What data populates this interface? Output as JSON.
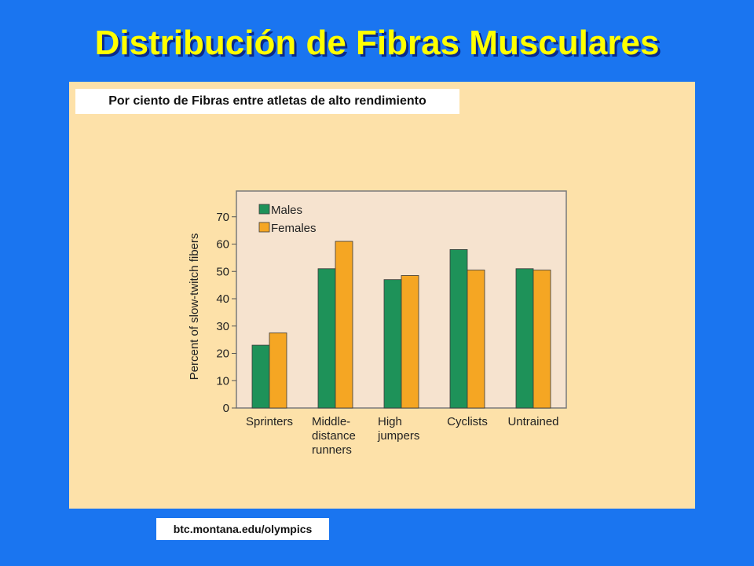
{
  "slide": {
    "title": "Distribución de Fibras Musculares",
    "caption": "Por ciento de Fibras entre atletas de alto rendimiento",
    "source": "btc.montana.edu/olympics"
  },
  "colors": {
    "background": "#1a75f0",
    "title": "#ffff00",
    "panel": "#fde1a9",
    "plot_area": "#f6e3cf",
    "males": "#1e9259",
    "females": "#f5a623"
  },
  "chart_data": {
    "type": "bar",
    "title": "",
    "xlabel": "",
    "ylabel": "Percent of slow-twitch fibers",
    "ylim": [
      0,
      80
    ],
    "yticks": [
      0,
      10,
      20,
      30,
      40,
      50,
      60,
      70
    ],
    "grid": false,
    "legend_position": "top-left",
    "categories": [
      [
        "Sprinters"
      ],
      [
        "Middle-",
        "distance",
        "runners"
      ],
      [
        "High",
        "jumpers"
      ],
      [
        "Cyclists"
      ],
      [
        "Untrained"
      ]
    ],
    "series": [
      {
        "name": "Males",
        "values": [
          23,
          51,
          47,
          58,
          51
        ]
      },
      {
        "name": "Females",
        "values": [
          27.5,
          61,
          48.5,
          50.5,
          50.5
        ]
      }
    ]
  }
}
